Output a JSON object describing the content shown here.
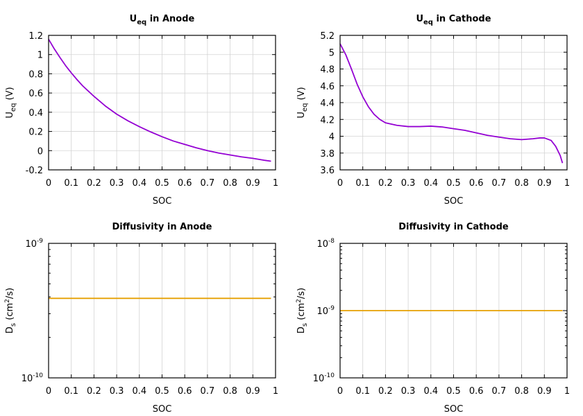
{
  "chart_data": [
    {
      "type": "line",
      "title": "U",
      "title_sub": "eq",
      "title_rest": " in Anode",
      "xlabel": "SOC",
      "ylabel": "U",
      "ylabel_sub": "eq",
      "ylabel_rest": " (V)",
      "xlim": [
        0,
        1
      ],
      "ylim": [
        -0.2,
        1.2
      ],
      "x_ticks": [
        "0",
        "0.1",
        "0.2",
        "0.3",
        "0.4",
        "0.5",
        "0.6",
        "0.7",
        "0.8",
        "0.9",
        "1"
      ],
      "y_ticks": [
        "-0.2",
        "0",
        "0.2",
        "0.4",
        "0.6",
        "0.8",
        "1",
        "1.2"
      ],
      "grid": true,
      "color": "#9400d3",
      "series": [
        {
          "x": [
            0,
            0.025,
            0.05,
            0.075,
            0.1,
            0.125,
            0.15,
            0.2,
            0.25,
            0.3,
            0.35,
            0.4,
            0.45,
            0.5,
            0.55,
            0.6,
            0.65,
            0.7,
            0.75,
            0.8,
            0.85,
            0.9,
            0.95,
            0.98
          ],
          "y": [
            1.16,
            1.06,
            0.97,
            0.885,
            0.81,
            0.74,
            0.675,
            0.565,
            0.465,
            0.38,
            0.31,
            0.25,
            0.195,
            0.145,
            0.1,
            0.065,
            0.03,
            0.0,
            -0.025,
            -0.045,
            -0.065,
            -0.08,
            -0.1,
            -0.11
          ]
        }
      ]
    },
    {
      "type": "line",
      "title": "U",
      "title_sub": "eq",
      "title_rest": " in Cathode",
      "xlabel": "SOC",
      "ylabel": "U",
      "ylabel_sub": "eq",
      "ylabel_rest": " (V)",
      "xlim": [
        0,
        1
      ],
      "ylim": [
        3.6,
        5.2
      ],
      "x_ticks": [
        "0",
        "0.1",
        "0.2",
        "0.3",
        "0.4",
        "0.5",
        "0.6",
        "0.7",
        "0.8",
        "0.9",
        "1"
      ],
      "y_ticks": [
        "3.6",
        "3.8",
        "4",
        "4.2",
        "4.4",
        "4.6",
        "4.8",
        "5",
        "5.2"
      ],
      "grid": true,
      "color": "#9400d3",
      "series": [
        {
          "x": [
            0,
            0.025,
            0.05,
            0.075,
            0.1,
            0.125,
            0.15,
            0.175,
            0.2,
            0.25,
            0.3,
            0.35,
            0.4,
            0.45,
            0.5,
            0.55,
            0.6,
            0.65,
            0.7,
            0.75,
            0.8,
            0.85,
            0.88,
            0.9,
            0.93,
            0.95,
            0.97,
            0.98
          ],
          "y": [
            5.1,
            4.97,
            4.8,
            4.62,
            4.47,
            4.35,
            4.26,
            4.2,
            4.16,
            4.13,
            4.115,
            4.115,
            4.12,
            4.11,
            4.09,
            4.07,
            4.04,
            4.01,
            3.99,
            3.97,
            3.96,
            3.97,
            3.98,
            3.98,
            3.95,
            3.88,
            3.77,
            3.68
          ]
        }
      ]
    },
    {
      "type": "line",
      "title": "Diffusivity in Anode",
      "xlabel": "SOC",
      "ylabel": "D",
      "ylabel_sub": "s",
      "ylabel_rest": " (cm",
      "ylabel_sup": "2",
      "ylabel_end": "/s)",
      "xlim": [
        0,
        1
      ],
      "ylim": [
        1e-10,
        1e-09
      ],
      "yscale": "log",
      "x_ticks": [
        "0",
        "0.1",
        "0.2",
        "0.3",
        "0.4",
        "0.5",
        "0.6",
        "0.7",
        "0.8",
        "0.9",
        "1"
      ],
      "y_ticks": [
        {
          "base": "10",
          "exp": "-10"
        },
        {
          "base": "10",
          "exp": "-9"
        }
      ],
      "grid": true,
      "color": "#e69f00",
      "series": [
        {
          "x": [
            0,
            0.98
          ],
          "y": [
            3.9e-10,
            3.9e-10
          ]
        }
      ]
    },
    {
      "type": "line",
      "title": "Diffusivity in Cathode",
      "xlabel": "SOC",
      "ylabel": "D",
      "ylabel_sub": "s",
      "ylabel_rest": " (cm",
      "ylabel_sup": "2",
      "ylabel_end": "/s)",
      "xlim": [
        0,
        1
      ],
      "ylim": [
        1e-10,
        1e-08
      ],
      "yscale": "log",
      "x_ticks": [
        "0",
        "0.1",
        "0.2",
        "0.3",
        "0.4",
        "0.5",
        "0.6",
        "0.7",
        "0.8",
        "0.9",
        "1"
      ],
      "y_ticks": [
        {
          "base": "10",
          "exp": "-10"
        },
        {
          "base": "10",
          "exp": "-9"
        },
        {
          "base": "10",
          "exp": "-8"
        }
      ],
      "grid": true,
      "color": "#e69f00",
      "series": [
        {
          "x": [
            0,
            0.98
          ],
          "y": [
            1e-09,
            1e-09
          ]
        }
      ]
    }
  ]
}
